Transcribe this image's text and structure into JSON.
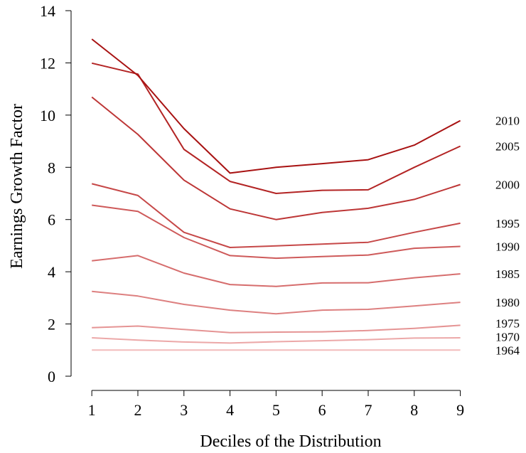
{
  "chart_data": {
    "type": "line",
    "title": "",
    "xlabel": "Deciles of the Distribution",
    "ylabel": "Earnings Growth Factor",
    "x": [
      1,
      2,
      3,
      4,
      5,
      6,
      7,
      8,
      9
    ],
    "xticks": [
      "1",
      "2",
      "3",
      "4",
      "5",
      "6",
      "7",
      "8",
      "9"
    ],
    "xlim": [
      0.55,
      9.5
    ],
    "ylim": [
      0,
      14
    ],
    "yticks": [
      "0",
      "2",
      "4",
      "6",
      "8",
      "10",
      "12",
      "14"
    ],
    "grid": false,
    "legend": "right-end labels",
    "series": [
      {
        "name": "1964",
        "color": "#f2bcbc",
        "values": [
          1.0,
          1.0,
          1.0,
          1.0,
          1.0,
          1.0,
          1.0,
          1.0,
          1.0
        ]
      },
      {
        "name": "1970",
        "color": "#eca8a8",
        "values": [
          1.47,
          1.38,
          1.31,
          1.27,
          1.32,
          1.36,
          1.4,
          1.46,
          1.47
        ]
      },
      {
        "name": "1975",
        "color": "#e59494",
        "values": [
          1.86,
          1.92,
          1.79,
          1.67,
          1.69,
          1.7,
          1.75,
          1.83,
          1.95
        ]
      },
      {
        "name": "1980",
        "color": "#dd8080",
        "values": [
          3.25,
          3.07,
          2.75,
          2.53,
          2.39,
          2.53,
          2.56,
          2.69,
          2.83
        ]
      },
      {
        "name": "1985",
        "color": "#d66d6d",
        "values": [
          4.42,
          4.62,
          3.95,
          3.51,
          3.44,
          3.57,
          3.58,
          3.77,
          3.92
        ]
      },
      {
        "name": "1990",
        "color": "#ce5a5a",
        "values": [
          6.55,
          6.31,
          5.31,
          4.62,
          4.52,
          4.58,
          4.64,
          4.9,
          4.97
        ]
      },
      {
        "name": "1995",
        "color": "#c64848",
        "values": [
          7.37,
          6.92,
          5.51,
          4.93,
          4.99,
          5.06,
          5.13,
          5.51,
          5.86
        ]
      },
      {
        "name": "2000",
        "color": "#bd3636",
        "values": [
          10.69,
          9.26,
          7.51,
          6.41,
          6.0,
          6.27,
          6.43,
          6.77,
          7.34
        ]
      },
      {
        "name": "2005",
        "color": "#b32424",
        "values": [
          11.99,
          11.57,
          8.69,
          7.46,
          7.0,
          7.12,
          7.14,
          8.0,
          8.81
        ]
      },
      {
        "name": "2010",
        "color": "#a81212",
        "values": [
          12.91,
          11.52,
          9.48,
          7.78,
          8.0,
          8.14,
          8.29,
          8.85,
          9.79
        ]
      }
    ]
  }
}
